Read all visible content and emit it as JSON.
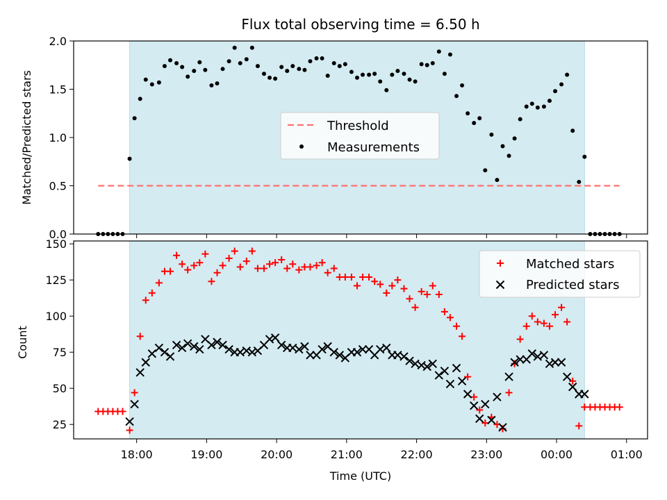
{
  "chart_data": [
    {
      "type": "scatter",
      "title": "Flux total observing time = 6.50 h",
      "ylabel": "Matched/Predicted stars",
      "xlabel": "",
      "x_unit": "hours UTC (24 = 00:00 next day)",
      "xlim": [
        17.1,
        25.3
      ],
      "ylim": [
        0.0,
        2.0
      ],
      "yticks": [
        0.0,
        0.5,
        1.0,
        1.5,
        2.0
      ],
      "ytick_labels": [
        "0.0",
        "0.5",
        "1.0",
        "1.5",
        "2.0"
      ],
      "shaded_span": {
        "x_start": 17.9,
        "x_end": 24.4,
        "color": "#d4ebf1"
      },
      "legend_position": "center",
      "legend": [
        "Threshold",
        "Measurements"
      ],
      "threshold": {
        "name": "Threshold",
        "y": 0.5,
        "x_start": 17.45,
        "x_end": 24.9,
        "color": "#ff7070",
        "style": "dashed"
      },
      "measurements": {
        "name": "Measurements",
        "color": "#000000",
        "points": [
          [
            17.45,
            0
          ],
          [
            17.52,
            0
          ],
          [
            17.59,
            0
          ],
          [
            17.66,
            0
          ],
          [
            17.73,
            0
          ],
          [
            17.8,
            0
          ],
          [
            17.9,
            0.78
          ],
          [
            17.97,
            1.2
          ],
          [
            18.05,
            1.4
          ],
          [
            18.13,
            1.6
          ],
          [
            18.22,
            1.55
          ],
          [
            18.32,
            1.57
          ],
          [
            18.4,
            1.74
          ],
          [
            18.48,
            1.8
          ],
          [
            18.57,
            1.77
          ],
          [
            18.65,
            1.73
          ],
          [
            18.73,
            1.63
          ],
          [
            18.82,
            1.69
          ],
          [
            18.9,
            1.78
          ],
          [
            18.98,
            1.7
          ],
          [
            19.07,
            1.54
          ],
          [
            19.15,
            1.56
          ],
          [
            19.23,
            1.71
          ],
          [
            19.32,
            1.79
          ],
          [
            19.4,
            1.93
          ],
          [
            19.48,
            1.77
          ],
          [
            19.57,
            1.81
          ],
          [
            19.65,
            1.93
          ],
          [
            19.73,
            1.74
          ],
          [
            19.82,
            1.66
          ],
          [
            19.9,
            1.62
          ],
          [
            19.98,
            1.61
          ],
          [
            20.07,
            1.73
          ],
          [
            20.15,
            1.69
          ],
          [
            20.23,
            1.74
          ],
          [
            20.32,
            1.71
          ],
          [
            20.4,
            1.7
          ],
          [
            20.48,
            1.79
          ],
          [
            20.57,
            1.82
          ],
          [
            20.65,
            1.82
          ],
          [
            20.73,
            1.64
          ],
          [
            20.82,
            1.77
          ],
          [
            20.9,
            1.74
          ],
          [
            20.98,
            1.76
          ],
          [
            21.07,
            1.68
          ],
          [
            21.15,
            1.62
          ],
          [
            21.23,
            1.65
          ],
          [
            21.32,
            1.65
          ],
          [
            21.4,
            1.66
          ],
          [
            21.48,
            1.58
          ],
          [
            21.57,
            1.49
          ],
          [
            21.65,
            1.65
          ],
          [
            21.73,
            1.69
          ],
          [
            21.82,
            1.66
          ],
          [
            21.9,
            1.6
          ],
          [
            21.98,
            1.58
          ],
          [
            22.07,
            1.76
          ],
          [
            22.15,
            1.75
          ],
          [
            22.23,
            1.77
          ],
          [
            22.32,
            1.89
          ],
          [
            22.4,
            1.66
          ],
          [
            22.48,
            1.86
          ],
          [
            22.57,
            1.43
          ],
          [
            22.65,
            1.54
          ],
          [
            22.73,
            1.25
          ],
          [
            22.82,
            1.15
          ],
          [
            22.9,
            1.2
          ],
          [
            22.98,
            0.66
          ],
          [
            23.07,
            1.03
          ],
          [
            23.15,
            0.56
          ],
          [
            23.23,
            0.91
          ],
          [
            23.32,
            0.81
          ],
          [
            23.4,
            0.99
          ],
          [
            23.48,
            1.19
          ],
          [
            23.57,
            1.32
          ],
          [
            23.65,
            1.35
          ],
          [
            23.73,
            1.31
          ],
          [
            23.82,
            1.32
          ],
          [
            23.9,
            1.38
          ],
          [
            23.98,
            1.48
          ],
          [
            24.07,
            1.55
          ],
          [
            24.15,
            1.65
          ],
          [
            24.23,
            1.07
          ],
          [
            24.32,
            0.54
          ],
          [
            24.4,
            0.8
          ],
          [
            24.48,
            0
          ],
          [
            24.55,
            0
          ],
          [
            24.62,
            0
          ],
          [
            24.69,
            0
          ],
          [
            24.76,
            0
          ],
          [
            24.83,
            0
          ],
          [
            24.9,
            0
          ]
        ]
      }
    },
    {
      "type": "scatter",
      "title": "",
      "xlabel": "Time (UTC)",
      "ylabel": "Count",
      "x_unit": "hours UTC (24 = 00:00 next day)",
      "xlim": [
        17.1,
        25.3
      ],
      "ylim": [
        15,
        152
      ],
      "yticks": [
        25,
        50,
        75,
        100,
        125,
        150
      ],
      "ytick_labels": [
        "25",
        "50",
        "75",
        "100",
        "125",
        "150"
      ],
      "xticks": [
        18,
        19,
        20,
        21,
        22,
        23,
        24,
        25
      ],
      "xtick_labels": [
        "18:00",
        "19:00",
        "20:00",
        "21:00",
        "22:00",
        "23:00",
        "00:00",
        "01:00"
      ],
      "shaded_span": {
        "x_start": 17.9,
        "x_end": 24.4,
        "color": "#d4ebf1"
      },
      "legend_position": "upper right",
      "legend": [
        "Matched stars",
        "Predicted stars"
      ],
      "series": [
        {
          "name": "Matched stars",
          "marker": "plus",
          "color": "#ff0000",
          "points": [
            [
              17.45,
              34
            ],
            [
              17.52,
              34
            ],
            [
              17.59,
              34
            ],
            [
              17.66,
              34
            ],
            [
              17.73,
              34
            ],
            [
              17.8,
              34
            ],
            [
              17.9,
              21
            ],
            [
              17.97,
              47
            ],
            [
              18.05,
              86
            ],
            [
              18.13,
              111
            ],
            [
              18.22,
              116
            ],
            [
              18.32,
              123
            ],
            [
              18.4,
              131
            ],
            [
              18.48,
              131
            ],
            [
              18.57,
              142
            ],
            [
              18.65,
              136
            ],
            [
              18.73,
              132
            ],
            [
              18.82,
              135
            ],
            [
              18.9,
              137
            ],
            [
              18.98,
              143
            ],
            [
              19.07,
              124
            ],
            [
              19.15,
              130
            ],
            [
              19.23,
              135
            ],
            [
              19.32,
              140
            ],
            [
              19.4,
              145
            ],
            [
              19.48,
              134
            ],
            [
              19.57,
              138
            ],
            [
              19.65,
              145
            ],
            [
              19.73,
              133
            ],
            [
              19.82,
              133
            ],
            [
              19.9,
              136
            ],
            [
              19.98,
              137
            ],
            [
              20.07,
              139
            ],
            [
              20.15,
              133
            ],
            [
              20.23,
              136
            ],
            [
              20.32,
              132
            ],
            [
              20.4,
              134
            ],
            [
              20.48,
              134
            ],
            [
              20.57,
              135
            ],
            [
              20.65,
              137
            ],
            [
              20.73,
              130
            ],
            [
              20.82,
              133
            ],
            [
              20.9,
              127
            ],
            [
              20.98,
              127
            ],
            [
              21.07,
              127
            ],
            [
              21.15,
              121
            ],
            [
              21.23,
              127
            ],
            [
              21.32,
              127
            ],
            [
              21.4,
              124
            ],
            [
              21.48,
              122
            ],
            [
              21.57,
              116
            ],
            [
              21.65,
              121
            ],
            [
              21.73,
              125
            ],
            [
              21.82,
              119
            ],
            [
              21.9,
              112
            ],
            [
              21.98,
              106
            ],
            [
              22.07,
              117
            ],
            [
              22.15,
              115
            ],
            [
              22.23,
              121
            ],
            [
              22.32,
              115
            ],
            [
              22.4,
              103
            ],
            [
              22.48,
              99
            ],
            [
              22.57,
              93
            ],
            [
              22.65,
              86
            ],
            [
              22.73,
              58
            ],
            [
              22.82,
              44
            ],
            [
              22.9,
              35
            ],
            [
              22.98,
              26
            ],
            [
              23.07,
              30
            ],
            [
              23.15,
              25
            ],
            [
              23.23,
              22
            ],
            [
              23.32,
              47
            ],
            [
              23.4,
              67
            ],
            [
              23.48,
              84
            ],
            [
              23.57,
              93
            ],
            [
              23.65,
              100
            ],
            [
              23.73,
              96
            ],
            [
              23.82,
              95
            ],
            [
              23.9,
              93
            ],
            [
              23.98,
              101
            ],
            [
              24.07,
              106
            ],
            [
              24.15,
              96
            ],
            [
              24.23,
              55
            ],
            [
              24.32,
              24
            ],
            [
              24.4,
              37
            ],
            [
              24.48,
              37
            ],
            [
              24.55,
              37
            ],
            [
              24.62,
              37
            ],
            [
              24.69,
              37
            ],
            [
              24.76,
              37
            ],
            [
              24.83,
              37
            ],
            [
              24.9,
              37
            ]
          ]
        },
        {
          "name": "Predicted stars",
          "marker": "x",
          "color": "#000000",
          "points": [
            [
              17.9,
              27
            ],
            [
              17.97,
              39
            ],
            [
              18.05,
              61
            ],
            [
              18.13,
              68
            ],
            [
              18.22,
              74
            ],
            [
              18.32,
              78
            ],
            [
              18.4,
              75
            ],
            [
              18.48,
              72
            ],
            [
              18.57,
              80
            ],
            [
              18.65,
              78
            ],
            [
              18.73,
              81
            ],
            [
              18.82,
              79
            ],
            [
              18.9,
              77
            ],
            [
              18.98,
              84
            ],
            [
              19.07,
              80
            ],
            [
              19.15,
              82
            ],
            [
              19.23,
              80
            ],
            [
              19.32,
              77
            ],
            [
              19.4,
              75
            ],
            [
              19.48,
              75
            ],
            [
              19.57,
              76
            ],
            [
              19.65,
              75
            ],
            [
              19.73,
              76
            ],
            [
              19.82,
              80
            ],
            [
              19.9,
              84
            ],
            [
              19.98,
              85
            ],
            [
              20.07,
              80
            ],
            [
              20.15,
              78
            ],
            [
              20.23,
              78
            ],
            [
              20.32,
              77
            ],
            [
              20.4,
              79
            ],
            [
              20.48,
              73
            ],
            [
              20.57,
              73
            ],
            [
              20.65,
              77
            ],
            [
              20.73,
              79
            ],
            [
              20.82,
              75
            ],
            [
              20.9,
              73
            ],
            [
              20.98,
              71
            ],
            [
              21.07,
              75
            ],
            [
              21.15,
              75
            ],
            [
              21.23,
              77
            ],
            [
              21.32,
              77
            ],
            [
              21.4,
              73
            ],
            [
              21.48,
              77
            ],
            [
              21.57,
              78
            ],
            [
              21.65,
              73
            ],
            [
              21.73,
              73
            ],
            [
              21.82,
              72
            ],
            [
              21.9,
              69
            ],
            [
              21.98,
              67
            ],
            [
              22.07,
              66
            ],
            [
              22.15,
              65
            ],
            [
              22.23,
              67
            ],
            [
              22.32,
              59
            ],
            [
              22.4,
              62
            ],
            [
              22.48,
              53
            ],
            [
              22.57,
              64
            ],
            [
              22.65,
              55
            ],
            [
              22.73,
              46
            ],
            [
              22.82,
              38
            ],
            [
              22.9,
              29
            ],
            [
              22.98,
              39
            ],
            [
              23.07,
              28
            ],
            [
              23.15,
              44
            ],
            [
              23.23,
              23
            ],
            [
              23.32,
              58
            ],
            [
              23.4,
              68
            ],
            [
              23.48,
              70
            ],
            [
              23.57,
              70
            ],
            [
              23.65,
              74
            ],
            [
              23.73,
              72
            ],
            [
              23.82,
              73
            ],
            [
              23.9,
              67
            ],
            [
              23.98,
              68
            ],
            [
              24.07,
              68
            ],
            [
              24.15,
              58
            ],
            [
              24.23,
              51
            ],
            [
              24.32,
              46
            ],
            [
              24.4,
              46
            ]
          ]
        }
      ]
    }
  ]
}
